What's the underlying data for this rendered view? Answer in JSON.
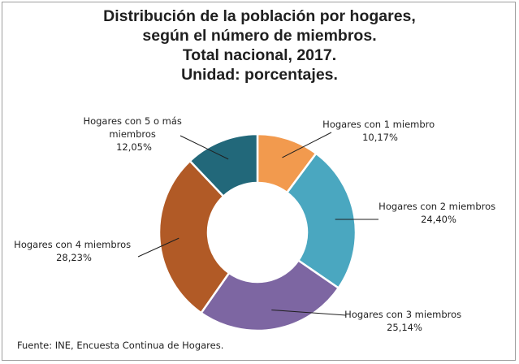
{
  "chart_data": {
    "type": "pie",
    "title": [
      "Distribución de la población por hogares,",
      "según el número de miembros.",
      "Total nacional, 2017.",
      "Unidad: porcentajes."
    ],
    "categories": [
      "Hogares con 1 miembro",
      "Hogares con 2 miembros",
      "Hogares con 3 miembros",
      "Hogares con 4 miembros",
      "Hogares con 5 o más miembros"
    ],
    "values": [
      10.17,
      24.4,
      25.14,
      28.23,
      12.05
    ],
    "value_labels": [
      "10,17%",
      "24,40%",
      "25,14%",
      "28,23%",
      "12,05%"
    ],
    "colors": [
      "#f29a4e",
      "#4aa7c0",
      "#7d66a2",
      "#b15a26",
      "#22687a"
    ],
    "donut": true,
    "legend": "none"
  },
  "source": "Fuente: INE, Encuesta Continua de Hogares."
}
